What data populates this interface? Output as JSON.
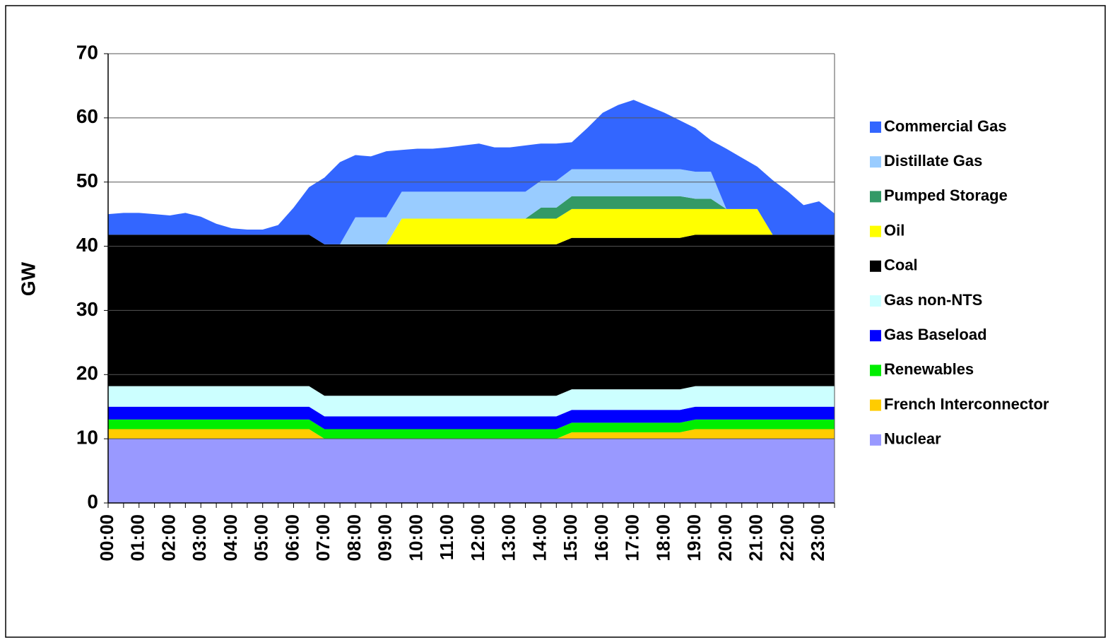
{
  "chart_data": {
    "type": "stacked_area",
    "y_label": "GW",
    "categories": [
      "00:00",
      null,
      "01:00",
      null,
      "02:00",
      null,
      "03:00",
      null,
      "04:00",
      null,
      "05:00",
      null,
      "06:00",
      null,
      "07:00",
      null,
      "08:00",
      null,
      "09:00",
      null,
      "10:00",
      null,
      "11:00",
      null,
      "12:00",
      null,
      "13:00",
      null,
      "14:00",
      null,
      "15:00",
      null,
      "16:00",
      null,
      "17:00",
      null,
      "18:00",
      null,
      "19:00",
      null,
      "20:00",
      null,
      "21:00",
      null,
      "22:00",
      null,
      "23:00",
      null
    ],
    "ylim": [
      0,
      70
    ],
    "yticks": [
      0,
      10,
      20,
      30,
      40,
      50,
      60,
      70
    ],
    "grid": true,
    "legend": "right",
    "series": [
      {
        "name": "Nuclear",
        "color": "#9999ff",
        "values": [
          10,
          10,
          10,
          10,
          10,
          10,
          10,
          10,
          10,
          10,
          10,
          10,
          10,
          10,
          10,
          10,
          10,
          10,
          10,
          10,
          10,
          10,
          10,
          10,
          10,
          10,
          10,
          10,
          10,
          10,
          10,
          10,
          10,
          10,
          10,
          10,
          10,
          10,
          10,
          10,
          10,
          10,
          10,
          10,
          10,
          10,
          10,
          10
        ]
      },
      {
        "name": "French Interconnector",
        "color": "#ffcc00",
        "values": [
          1.5,
          1.5,
          1.5,
          1.5,
          1.5,
          1.5,
          1.5,
          1.5,
          1.5,
          1.5,
          1.5,
          1.5,
          1.5,
          1.5,
          0,
          0,
          0,
          0,
          0,
          0,
          0,
          0,
          0,
          0,
          0,
          0,
          0,
          0,
          0,
          0,
          1,
          1,
          1,
          1,
          1,
          1,
          1,
          1,
          1.5,
          1.5,
          1.5,
          1.5,
          1.5,
          1.5,
          1.5,
          1.5,
          1.5,
          1.5
        ]
      },
      {
        "name": "Renewables",
        "color": "#00ee00",
        "values": [
          1.5,
          1.5,
          1.5,
          1.5,
          1.5,
          1.5,
          1.5,
          1.5,
          1.5,
          1.5,
          1.5,
          1.5,
          1.5,
          1.5,
          1.5,
          1.5,
          1.5,
          1.5,
          1.5,
          1.5,
          1.5,
          1.5,
          1.5,
          1.5,
          1.5,
          1.5,
          1.5,
          1.5,
          1.5,
          1.5,
          1.5,
          1.5,
          1.5,
          1.5,
          1.5,
          1.5,
          1.5,
          1.5,
          1.5,
          1.5,
          1.5,
          1.5,
          1.5,
          1.5,
          1.5,
          1.5,
          1.5,
          1.5
        ]
      },
      {
        "name": "Gas Baseload",
        "color": "#0000ff",
        "values": [
          2,
          2,
          2,
          2,
          2,
          2,
          2,
          2,
          2,
          2,
          2,
          2,
          2,
          2,
          2,
          2,
          2,
          2,
          2,
          2,
          2,
          2,
          2,
          2,
          2,
          2,
          2,
          2,
          2,
          2,
          2,
          2,
          2,
          2,
          2,
          2,
          2,
          2,
          2,
          2,
          2,
          2,
          2,
          2,
          2,
          2,
          2,
          2
        ]
      },
      {
        "name": "Gas non-NTS",
        "color": "#ccffff",
        "values": [
          3.2,
          3.2,
          3.2,
          3.2,
          3.2,
          3.2,
          3.2,
          3.2,
          3.2,
          3.2,
          3.2,
          3.2,
          3.2,
          3.2,
          3.2,
          3.2,
          3.2,
          3.2,
          3.2,
          3.2,
          3.2,
          3.2,
          3.2,
          3.2,
          3.2,
          3.2,
          3.2,
          3.2,
          3.2,
          3.2,
          3.2,
          3.2,
          3.2,
          3.2,
          3.2,
          3.2,
          3.2,
          3.2,
          3.2,
          3.2,
          3.2,
          3.2,
          3.2,
          3.2,
          3.2,
          3.2,
          3.2,
          3.2
        ]
      },
      {
        "name": "Coal",
        "color": "#000000",
        "values": [
          23.6,
          23.6,
          23.6,
          23.6,
          23.6,
          23.6,
          23.6,
          23.6,
          23.6,
          23.6,
          23.6,
          23.6,
          23.6,
          23.6,
          23.6,
          23.6,
          23.6,
          23.6,
          23.6,
          23.6,
          23.6,
          23.6,
          23.6,
          23.6,
          23.6,
          23.6,
          23.6,
          23.6,
          23.6,
          23.6,
          23.6,
          23.6,
          23.6,
          23.6,
          23.6,
          23.6,
          23.6,
          23.6,
          23.6,
          23.6,
          23.6,
          23.6,
          23.6,
          23.6,
          23.6,
          23.6,
          23.6,
          23.6
        ]
      },
      {
        "name": "Oil",
        "color": "#ffff00",
        "values": [
          0,
          0,
          0,
          0,
          0,
          0,
          0,
          0,
          0,
          0,
          0,
          0,
          0,
          0,
          0,
          0,
          0,
          0,
          0,
          4,
          4,
          4,
          4,
          4,
          4,
          4,
          4,
          4,
          4,
          4,
          4.5,
          4.5,
          4.5,
          4.5,
          4.5,
          4.5,
          4.5,
          4.5,
          4,
          4,
          4,
          4,
          4,
          0,
          0,
          0,
          0,
          0
        ]
      },
      {
        "name": "Pumped Storage",
        "color": "#339966",
        "values": [
          0,
          0,
          0,
          0,
          0,
          0,
          0,
          0,
          0,
          0,
          0,
          0,
          0,
          0,
          0,
          0,
          0,
          0,
          0,
          0,
          0,
          0,
          0,
          0,
          0,
          0,
          0,
          0,
          1.7,
          1.7,
          2,
          2,
          2,
          2,
          2,
          2,
          2,
          2,
          1.6,
          1.6,
          0,
          0,
          0,
          0,
          0,
          0,
          0,
          0
        ]
      },
      {
        "name": "Distillate Gas",
        "color": "#99ccff",
        "values": [
          0,
          0,
          0,
          0,
          0,
          0,
          0,
          0,
          0,
          0,
          0,
          0,
          0,
          0,
          0,
          0,
          4.2,
          4.2,
          4.2,
          4.2,
          4.2,
          4.2,
          4.2,
          4.2,
          4.2,
          4.2,
          4.2,
          4.2,
          4.2,
          4.2,
          4.2,
          4.2,
          4.2,
          4.2,
          4.2,
          4.2,
          4.2,
          4.2,
          4.2,
          4.2,
          0,
          0,
          0,
          0,
          0,
          0,
          0,
          0
        ]
      },
      {
        "name": "Commercial Gas",
        "color": "#3366ff",
        "values": [
          3.2,
          3.4,
          3.4,
          3.2,
          3.0,
          3.4,
          2.8,
          1.7,
          1.0,
          0.8,
          0.8,
          1.5,
          4.2,
          7.4,
          10.4,
          12.8,
          9.7,
          9.5,
          10.3,
          6.5,
          6.7,
          6.7,
          6.9,
          7.2,
          7.5,
          6.9,
          6.9,
          7.2,
          5.8,
          5.8,
          4.2,
          6.4,
          8.8,
          10.0,
          10.8,
          9.8,
          8.8,
          7.6,
          6.8,
          4.9,
          9.4,
          8.0,
          6.6,
          8.5,
          6.7,
          4.6,
          5.2,
          3.3
        ]
      }
    ]
  }
}
